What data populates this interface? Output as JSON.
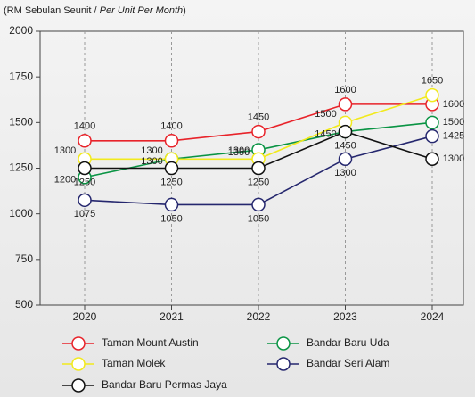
{
  "chart_data": {
    "type": "line",
    "subtitle": [
      "(RM Sebulan Seunit / ",
      "Per Unit Per Month",
      ")"
    ],
    "categories": [
      "2020",
      "2021",
      "2022",
      "2023",
      "2024"
    ],
    "series": [
      {
        "name": "Taman Mount Austin",
        "color": "#e8232a",
        "values": [
          1400,
          1400,
          1450,
          1600,
          1600
        ]
      },
      {
        "name": "Bandar Baru Uda",
        "color": "#0a9444",
        "values": [
          1200,
          1300,
          1350,
          1450,
          1500
        ]
      },
      {
        "name": "Taman Molek",
        "color": "#f2ea1d",
        "values": [
          1300,
          1300,
          1300,
          1500,
          1650
        ]
      },
      {
        "name": "Bandar Seri Alam",
        "color": "#25276e",
        "values": [
          1075,
          1050,
          1050,
          1300,
          1425
        ]
      },
      {
        "name": "Bandar Baru Permas Jaya",
        "color": "#111111",
        "values": [
          1250,
          1250,
          1250,
          1450,
          1300
        ]
      }
    ],
    "ylim": [
      500,
      2000
    ],
    "yticks": [
      500,
      750,
      1000,
      1250,
      1500,
      1750,
      2000
    ],
    "grid": true
  }
}
